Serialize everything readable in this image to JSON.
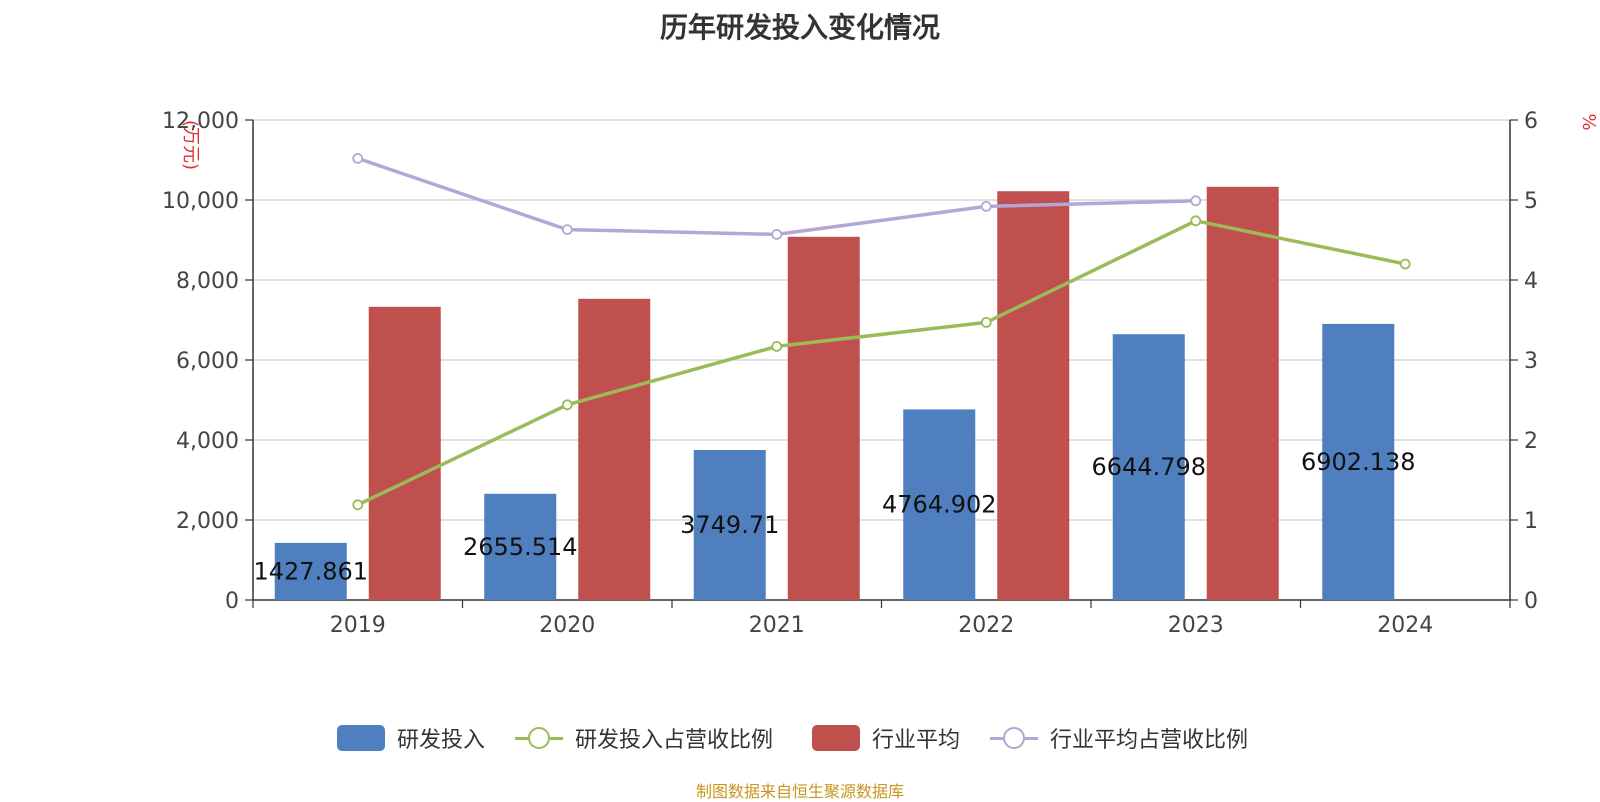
{
  "title": "历年研发投入变化情况",
  "source": "制图数据来自恒生聚源数据库",
  "colors": {
    "rd_bar": "#4f7fbe",
    "industry_bar": "#c0504d",
    "rd_ratio_line": "#9bbb59",
    "industry_ratio_line": "#b4a7d6",
    "axis_unit": "#e03030"
  },
  "legend": [
    {
      "label": "研发投入",
      "kind": "bar",
      "color": "#4f7fbe"
    },
    {
      "label": "研发投入占营收比例",
      "kind": "line",
      "color": "#9bbb59"
    },
    {
      "label": "行业平均",
      "kind": "bar",
      "color": "#c0504d"
    },
    {
      "label": "行业平均占营收比例",
      "kind": "line",
      "color": "#b4a7d6"
    }
  ],
  "chart_data": {
    "type": "bar",
    "title": "历年研发投入变化情况",
    "categories": [
      "2019",
      "2020",
      "2021",
      "2022",
      "2023",
      "2024"
    ],
    "y_left": {
      "label": "万元",
      "range": [
        0,
        12000
      ],
      "ticks": [
        0,
        2000,
        4000,
        6000,
        8000,
        10000,
        12000
      ],
      "tick_labels": [
        "0",
        "2,000",
        "4,000",
        "6,000",
        "8,000",
        "10,000",
        "12,000"
      ]
    },
    "y_right": {
      "label": "%",
      "range": [
        0,
        6
      ],
      "ticks": [
        0,
        1,
        2,
        3,
        4,
        5,
        6
      ],
      "tick_labels": [
        "0",
        "1",
        "2",
        "3",
        "4",
        "5",
        "6"
      ]
    },
    "grid": true,
    "legend_position": "bottom",
    "series": [
      {
        "name": "研发投入",
        "type": "bar",
        "axis": "left",
        "values": [
          1427.861,
          2655.514,
          3749.71,
          4764.902,
          6644.798,
          6902.138
        ],
        "data_labels": [
          "1427.861",
          "2655.514",
          "3749.71",
          "4764.902",
          "6644.798",
          "6902.138"
        ]
      },
      {
        "name": "研发投入占营收比例",
        "type": "line",
        "axis": "right",
        "values": [
          1.19,
          2.44,
          3.17,
          3.47,
          4.74,
          4.2
        ]
      },
      {
        "name": "行业平均",
        "type": "bar",
        "axis": "left",
        "values": [
          7330,
          7530,
          9080,
          10220,
          10330,
          null
        ]
      },
      {
        "name": "行业平均占营收比例",
        "type": "line",
        "axis": "right",
        "values": [
          5.52,
          4.63,
          4.57,
          4.92,
          4.99,
          null
        ]
      }
    ]
  }
}
